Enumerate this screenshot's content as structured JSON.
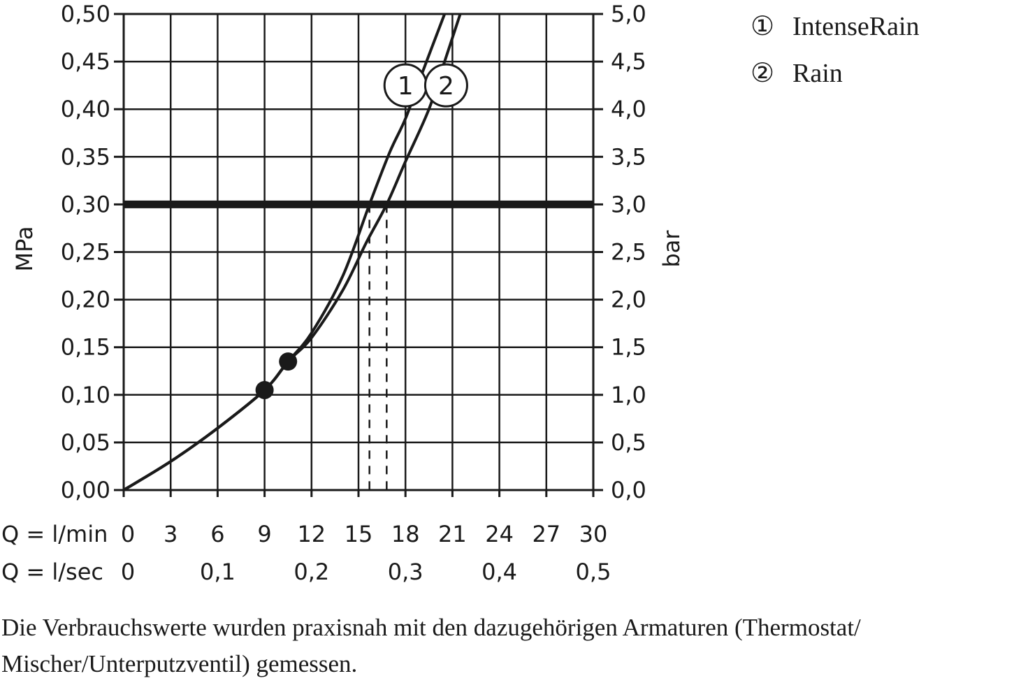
{
  "chart_data": {
    "type": "line",
    "title": "",
    "y_left": {
      "label": "MPa",
      "range": [
        0,
        0.5
      ],
      "ticks": [
        "0,00",
        "0,05",
        "0,10",
        "0,15",
        "0,20",
        "0,25",
        "0,30",
        "0,35",
        "0,40",
        "0,45",
        "0,50"
      ]
    },
    "y_right": {
      "label": "bar",
      "range": [
        0,
        5
      ],
      "ticks": [
        "0,0",
        "0,5",
        "1,0",
        "1,5",
        "2,0",
        "2,5",
        "3,0",
        "3,5",
        "4,0",
        "4,5",
        "5,0"
      ]
    },
    "x_axis": {
      "range": [
        0,
        30
      ],
      "row1_label": "Q = l/min",
      "row1_ticks": [
        "0",
        "3",
        "6",
        "9",
        "12",
        "15",
        "18",
        "21",
        "24",
        "27",
        "30"
      ],
      "row2_label": "Q = l/sec",
      "row2_ticks": [
        "0",
        "0,1",
        "0,2",
        "0,3",
        "0,4",
        "0,5"
      ]
    },
    "grid": true,
    "legend_position": "top-right",
    "reference_line": {
      "y": 0.3
    },
    "series": [
      {
        "name": "IntenseRain",
        "marker": "1",
        "x": [
          0,
          3,
          6,
          9,
          10.5,
          12,
          14,
          15.7,
          17,
          18,
          19,
          20.5
        ],
        "y": [
          0,
          0.03,
          0.065,
          0.105,
          0.135,
          0.165,
          0.225,
          0.3,
          0.355,
          0.39,
          0.435,
          0.5
        ],
        "dot": {
          "x": 10.5,
          "y": 0.135
        },
        "crossing_x": 15.7
      },
      {
        "name": "Rain",
        "marker": "2",
        "x": [
          0,
          3,
          6,
          9,
          10.5,
          12,
          14,
          15.5,
          16.8,
          18,
          19.5,
          20.5,
          21.5
        ],
        "y": [
          0,
          0.03,
          0.065,
          0.105,
          0.135,
          0.16,
          0.21,
          0.26,
          0.3,
          0.345,
          0.4,
          0.45,
          0.5
        ],
        "dot": {
          "x": 9,
          "y": 0.105
        },
        "crossing_x": 16.8
      }
    ]
  },
  "legend": {
    "items": [
      {
        "marker": "①",
        "label": "IntenseRain"
      },
      {
        "marker": "②",
        "label": "Rain"
      }
    ]
  },
  "footnote": "Die Verbrauchswerte wurden praxisnah mit den dazugehörigen Armaturen (Thermostat/ Mischer/Unterputzventil) gemessen."
}
